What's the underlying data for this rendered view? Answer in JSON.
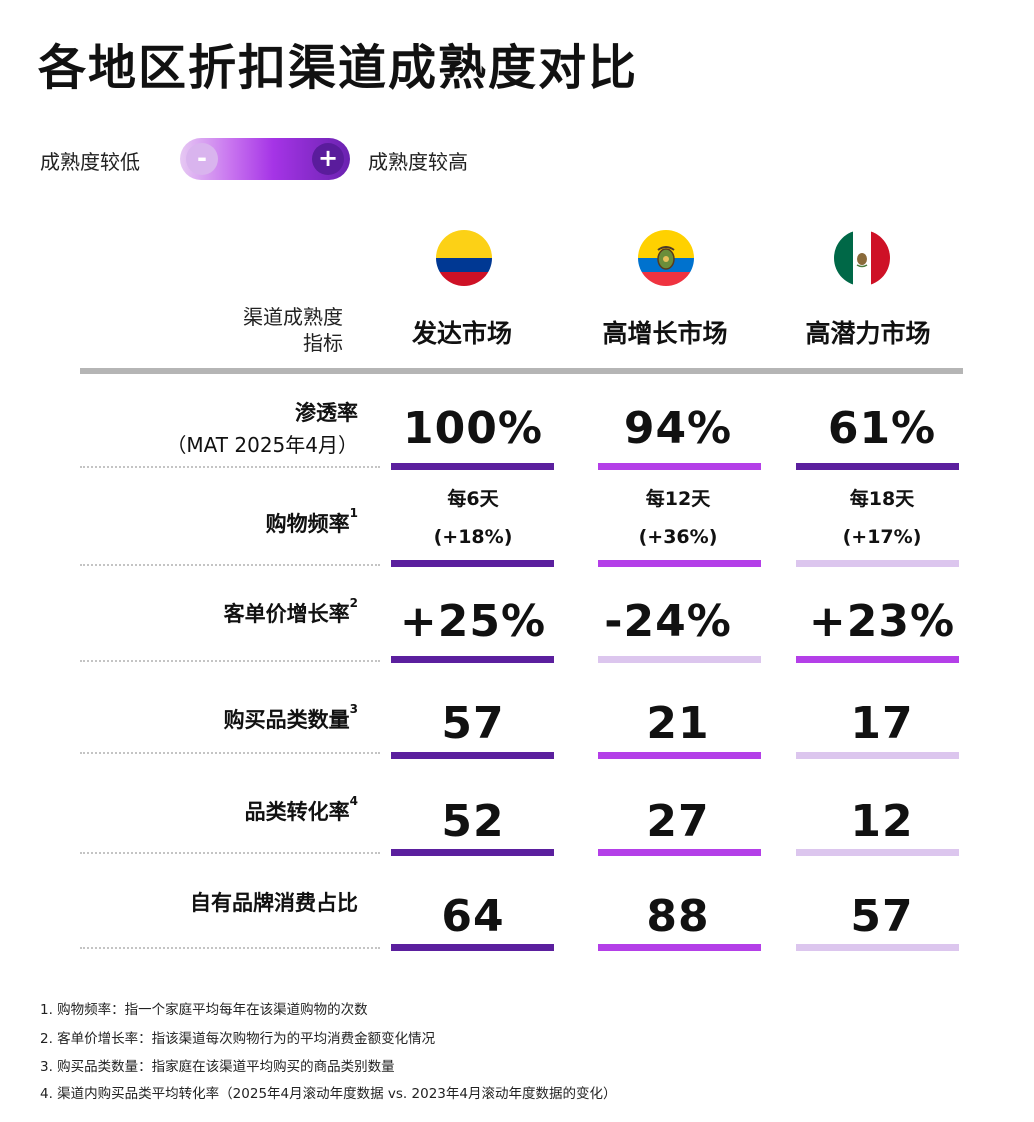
{
  "title": "各地区折扣渠道成熟度对比",
  "legend": {
    "low_label": "成熟度较低",
    "high_label": "成熟度较高",
    "minus": "-",
    "plus": "+"
  },
  "header": {
    "metric_line1": "渠道成熟度",
    "metric_line2": "指标",
    "columns": [
      "发达市场",
      "高增长市场",
      "高潜力市场"
    ]
  },
  "flags": [
    "colombia-flag",
    "ecuador-flag",
    "mexico-flag"
  ],
  "colors": {
    "dark": "#5b1f9e",
    "medium": "#b43fe8",
    "light": "#dcc6ee"
  },
  "rows": [
    {
      "label": "渗透率",
      "sub": "（MAT 2025年4月）",
      "sup": "",
      "cells": [
        {
          "value": "100%",
          "level": "dark"
        },
        {
          "value": "94%",
          "level": "medium"
        },
        {
          "value": "61%",
          "level": "dark"
        }
      ]
    },
    {
      "label": "购物频率",
      "sub": "",
      "sup": "1",
      "cells": [
        {
          "line1": "每6天",
          "line2": "(+18%)",
          "level": "dark"
        },
        {
          "line1": "每12天",
          "line2": "(+36%)",
          "level": "medium"
        },
        {
          "line1": "每18天",
          "line2": "(+17%)",
          "level": "light"
        }
      ]
    },
    {
      "label": "客单价增长率",
      "sub": "",
      "sup": "2",
      "cells": [
        {
          "value": "+25%",
          "level": "dark"
        },
        {
          "value": "-24%",
          "level": "light"
        },
        {
          "value": "+23%",
          "level": "medium"
        }
      ]
    },
    {
      "label": "购买品类数量",
      "sub": "",
      "sup": "3",
      "cells": [
        {
          "value": "57",
          "level": "dark"
        },
        {
          "value": "21",
          "level": "medium"
        },
        {
          "value": "17",
          "level": "light"
        }
      ]
    },
    {
      "label": "品类转化率",
      "sub": "",
      "sup": "4",
      "cells": [
        {
          "value": "52",
          "level": "dark"
        },
        {
          "value": "27",
          "level": "medium"
        },
        {
          "value": "12",
          "level": "light"
        }
      ]
    },
    {
      "label": "自有品牌消费占比",
      "sub": "",
      "sup": "",
      "cells": [
        {
          "value": "64",
          "level": "dark"
        },
        {
          "value": "88",
          "level": "medium"
        },
        {
          "value": "57",
          "level": "light"
        }
      ]
    }
  ],
  "footnotes": [
    "1. 购物频率：指一个家庭平均每年在该渠道购物的次数",
    "2. 客单价增长率：指该渠道每次购物行为的平均消费金额变化情况",
    "3. 购买品类数量：指家庭在该渠道平均购买的商品类别数量",
    "4. 渠道内购买品类平均转化率（2025年4月滚动年度数据 vs. 2023年4月滚动年度数据的变化）"
  ]
}
